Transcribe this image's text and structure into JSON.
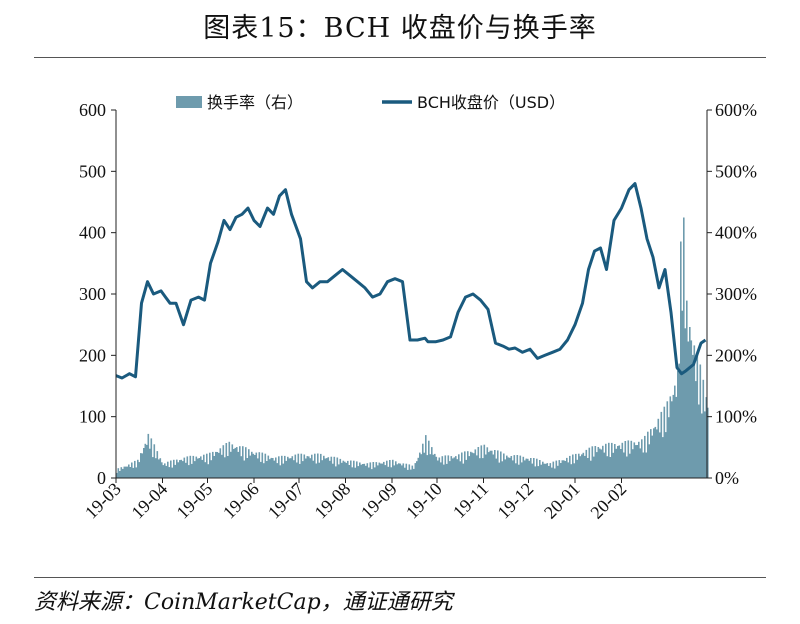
{
  "header": {
    "title": "图表15：BCH 收盘价与换手率"
  },
  "footer": {
    "source": "资料来源：CoinMarketCap，通证通研究"
  },
  "chart_data": {
    "type": "line",
    "title": "图表15：BCH 收盘价与换手率",
    "legend": {
      "placement": "top-center",
      "entries": [
        "换手率（右）",
        "BCH收盘价（USD）"
      ]
    },
    "x_ticks": [
      "19-03",
      "19-04",
      "19-05",
      "19-06",
      "19-07",
      "19-08",
      "19-09",
      "19-10",
      "19-11",
      "19-12",
      "20-01",
      "20-02"
    ],
    "y_left": {
      "ticks": [
        "0",
        "100",
        "200",
        "300",
        "400",
        "500",
        "600"
      ],
      "ylim": [
        0,
        600
      ]
    },
    "y_right": {
      "ticks": [
        "0%",
        "100%",
        "200%",
        "300%",
        "400%",
        "500%",
        "600%"
      ],
      "ylim": [
        0,
        600
      ]
    },
    "grid": false,
    "colors": {
      "price": "#1a5a7e",
      "turnover": "#6e9bad"
    },
    "series": [
      {
        "name": "BCH收盘价（USD）",
        "type": "line",
        "axis": "left",
        "x": [
          "19-03-01",
          "19-03-05",
          "19-03-10",
          "19-03-14",
          "19-03-18",
          "19-03-22",
          "19-03-26",
          "19-03-31",
          "19-04-03",
          "19-04-06",
          "19-04-10",
          "19-04-15",
          "19-04-20",
          "19-04-25",
          "19-04-29",
          "19-05-03",
          "19-05-08",
          "19-05-12",
          "19-05-16",
          "19-05-20",
          "19-05-24",
          "19-05-28",
          "19-06-01",
          "19-06-05",
          "19-06-10",
          "19-06-14",
          "19-06-18",
          "19-06-22",
          "19-06-26",
          "19-06-29",
          "19-07-02",
          "19-07-06",
          "19-07-10",
          "19-07-15",
          "19-07-20",
          "19-07-25",
          "19-07-30",
          "19-08-04",
          "19-08-09",
          "19-08-14",
          "19-08-19",
          "19-08-24",
          "19-08-29",
          "19-09-03",
          "19-09-08",
          "19-09-13",
          "19-09-18",
          "19-09-23",
          "19-09-25",
          "19-09-30",
          "19-10-05",
          "19-10-10",
          "19-10-15",
          "19-10-20",
          "19-10-25",
          "19-10-30",
          "19-11-04",
          "19-11-09",
          "19-11-14",
          "19-11-18",
          "19-11-22",
          "19-11-27",
          "19-12-02",
          "19-12-07",
          "19-12-12",
          "19-12-17",
          "19-12-22",
          "19-12-27",
          "20-01-01",
          "20-01-06",
          "20-01-10",
          "20-01-14",
          "20-01-18",
          "20-01-22",
          "20-01-27",
          "20-02-01",
          "20-02-06",
          "20-02-10",
          "20-02-14",
          "20-02-18",
          "20-02-22",
          "20-02-26",
          "20-03-01",
          "20-03-05",
          "20-03-09",
          "20-03-12",
          "20-03-15",
          "20-03-20",
          "20-03-25",
          "20-03-28"
        ],
        "values": [
          167,
          163,
          170,
          165,
          285,
          320,
          300,
          305,
          295,
          285,
          285,
          250,
          290,
          295,
          290,
          350,
          385,
          420,
          405,
          425,
          430,
          440,
          420,
          410,
          440,
          430,
          460,
          470,
          430,
          410,
          390,
          320,
          310,
          320,
          320,
          330,
          340,
          330,
          320,
          310,
          295,
          300,
          320,
          325,
          320,
          225,
          225,
          228,
          222,
          222,
          225,
          230,
          270,
          295,
          300,
          290,
          275,
          220,
          215,
          210,
          212,
          205,
          210,
          195,
          200,
          205,
          210,
          225,
          250,
          285,
          340,
          370,
          375,
          340,
          420,
          440,
          470,
          480,
          440,
          390,
          360,
          310,
          340,
          270,
          180,
          170,
          175,
          185,
          220,
          225
        ]
      },
      {
        "name": "换手率（右）",
        "type": "bar",
        "axis": "right",
        "x": [
          "19-03-01",
          "19-03-15",
          "19-03-22",
          "19-04-01",
          "19-04-15",
          "19-05-01",
          "19-05-15",
          "19-06-01",
          "19-06-15",
          "19-07-01",
          "19-07-15",
          "19-08-01",
          "19-08-15",
          "19-09-01",
          "19-09-15",
          "19-09-23",
          "19-10-01",
          "19-10-15",
          "19-11-01",
          "19-11-15",
          "19-12-01",
          "19-12-15",
          "20-01-01",
          "20-01-15",
          "20-02-01",
          "20-02-15",
          "20-03-01",
          "20-03-09",
          "20-03-12",
          "20-03-15",
          "20-03-20",
          "20-03-28"
        ],
        "values": [
          15,
          30,
          75,
          25,
          35,
          40,
          60,
          45,
          35,
          40,
          40,
          30,
          25,
          30,
          20,
          70,
          35,
          40,
          55,
          40,
          35,
          25,
          40,
          55,
          60,
          65,
          120,
          180,
          490,
          300,
          230,
          140
        ]
      }
    ]
  }
}
